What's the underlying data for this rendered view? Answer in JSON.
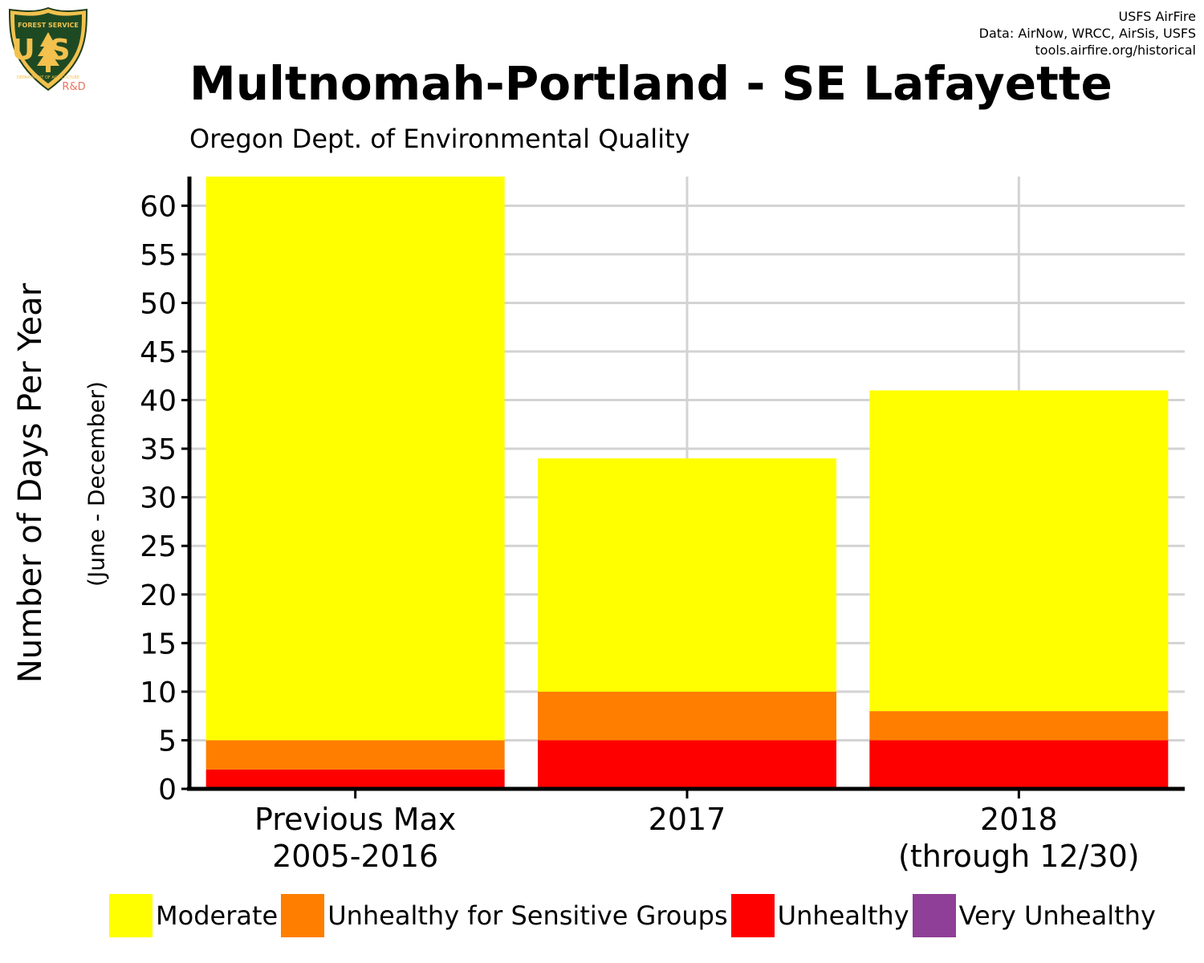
{
  "logo": {
    "top_text": "FOREST SERVICE",
    "letters": "US",
    "bottom_text": "DEPARTMENT OF AGRICULTURE",
    "tag": "R&D"
  },
  "credits": {
    "line1": "USFS AirFire",
    "line2": "Data: AirNow, WRCC, AirSis, USFS",
    "line3": "tools.airfire.org/historical"
  },
  "colors": {
    "moderate": "#ffff00",
    "usg": "#ff7e00",
    "unhealthy": "#ff0000",
    "very_unhealthy": "#8f3f97",
    "grid": "#d3d3d3"
  },
  "chart_data": {
    "type": "bar",
    "stacked": true,
    "title": "Multnomah-Portland - SE Lafayette",
    "subtitle": "Oregon Dept. of Environmental Quality",
    "ylabel": "Number of Days Per Year",
    "ylabel_secondary": "(June - December)",
    "xlabel": "",
    "categories": [
      [
        "Previous Max",
        "2005-2016"
      ],
      [
        "2017"
      ],
      [
        "2018",
        "(through 12/30)"
      ]
    ],
    "yticks": [
      0,
      5,
      10,
      15,
      20,
      25,
      30,
      35,
      40,
      45,
      50,
      55,
      60
    ],
    "ylim": [
      0,
      63
    ],
    "grid": true,
    "legend_position": "bottom",
    "series": [
      {
        "name": "Unhealthy",
        "color": "#ff0000",
        "values": [
          2,
          5,
          5
        ]
      },
      {
        "name": "Unhealthy for Sensitive Groups",
        "color": "#ff7e00",
        "values": [
          3,
          5,
          3
        ]
      },
      {
        "name": "Moderate",
        "color": "#ffff00",
        "values": [
          58,
          24,
          33
        ]
      },
      {
        "name": "Very Unhealthy",
        "color": "#8f3f97",
        "values": [
          0,
          0,
          0
        ]
      }
    ],
    "legend": [
      {
        "name": "Moderate",
        "color": "#ffff00"
      },
      {
        "name": "Unhealthy for Sensitive Groups",
        "color": "#ff7e00"
      },
      {
        "name": "Unhealthy",
        "color": "#ff0000"
      },
      {
        "name": "Very Unhealthy",
        "color": "#8f3f97"
      }
    ]
  }
}
